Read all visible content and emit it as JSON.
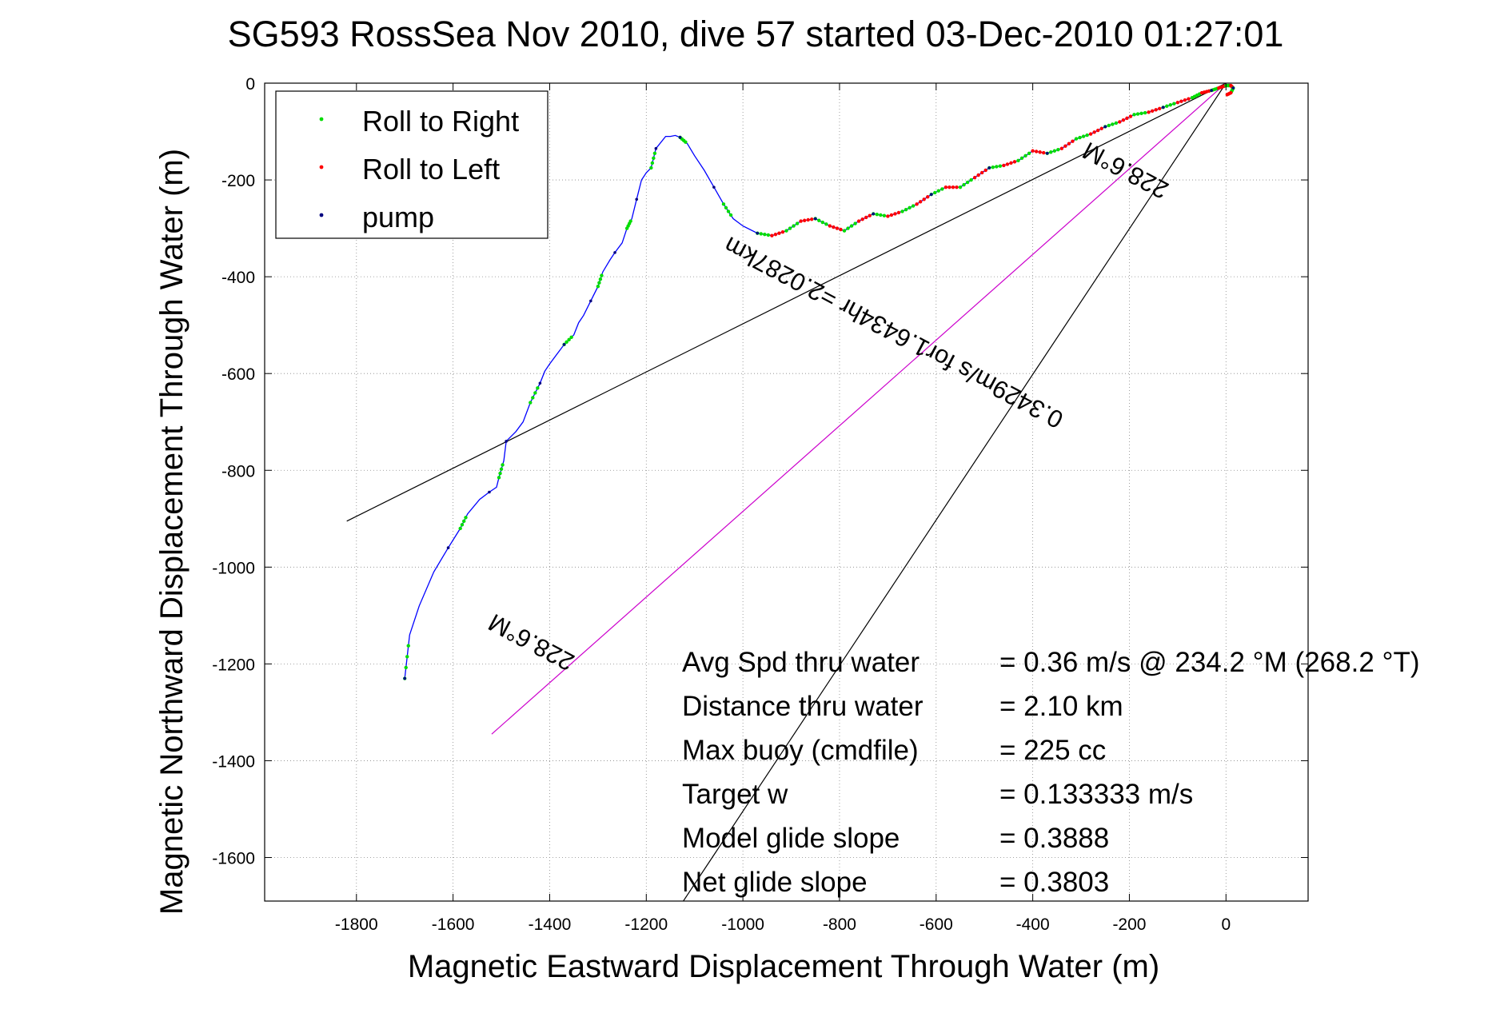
{
  "chart_data": {
    "type": "line",
    "title": "SG593 RossSea Nov 2010, dive 57 started 03-Dec-2010 01:27:01",
    "xlabel": "Magnetic Eastward Displacement Through Water (m)",
    "ylabel": "Magnetic Northward Displacement Through Water (m)",
    "xlim": [
      -1990,
      170
    ],
    "ylim": [
      -1690,
      0
    ],
    "grid": true,
    "x_ticks": [
      "-1800",
      "-1600",
      "-1400",
      "-1200",
      "-1000",
      "-800",
      "-600",
      "-400",
      "-200",
      "0"
    ],
    "y_ticks": [
      "0",
      "-200",
      "-400",
      "-600",
      "-800",
      "-1000",
      "-1200",
      "-1400",
      "-1600"
    ],
    "legend": {
      "placement": "top-left",
      "entries": [
        {
          "label": "Roll to Right",
          "color": "#00dd00"
        },
        {
          "label": "Roll to Left",
          "color": "#ff0000"
        },
        {
          "label": "pump",
          "color": "#000080"
        }
      ]
    },
    "track_color": "#0000ff",
    "series": [
      {
        "name": "track",
        "x": [
          -1700,
          -1690,
          -1670,
          -1640,
          -1610,
          -1585,
          -1570,
          -1545,
          -1525,
          -1510,
          -1505,
          -1495,
          -1490,
          -1470,
          -1455,
          -1440,
          -1420,
          -1410,
          -1400,
          -1385,
          -1370,
          -1350,
          -1340,
          -1330,
          -1315,
          -1300,
          -1290,
          -1275,
          -1265,
          -1250,
          -1240,
          -1230,
          -1220,
          -1210,
          -1200,
          -1190,
          -1180,
          -1160,
          -1150,
          -1140,
          -1130,
          -1115,
          -1100,
          -1080,
          -1060,
          -1040,
          -1020,
          -1000,
          -970,
          -940,
          -910,
          -880,
          -850,
          -820,
          -790,
          -760,
          -730,
          -700,
          -670,
          -640,
          -610,
          -580,
          -550,
          -520,
          -490,
          -460,
          -430,
          -400,
          -370,
          -340,
          -310,
          -280,
          -250,
          -220,
          -190,
          -160,
          -130,
          -100,
          -70,
          -50,
          -30,
          -15,
          0,
          10,
          15,
          10,
          0
        ],
        "y": [
          -1230,
          -1140,
          -1080,
          -1010,
          -960,
          -920,
          -890,
          -860,
          -845,
          -835,
          -815,
          -780,
          -740,
          -720,
          -700,
          -660,
          -620,
          -595,
          -580,
          -560,
          -540,
          -520,
          -495,
          -480,
          -450,
          -420,
          -390,
          -365,
          -350,
          -330,
          -300,
          -280,
          -240,
          -200,
          -185,
          -175,
          -135,
          -110,
          -110,
          -108,
          -112,
          -125,
          -150,
          -180,
          -215,
          -250,
          -280,
          -295,
          -310,
          -315,
          -305,
          -285,
          -280,
          -295,
          -305,
          -285,
          -270,
          -275,
          -265,
          -250,
          -230,
          -215,
          -215,
          -195,
          -175,
          -170,
          -160,
          -140,
          -145,
          -135,
          -115,
          -105,
          -90,
          -80,
          -65,
          -60,
          -50,
          -40,
          -30,
          -20,
          -15,
          -10,
          -5,
          -5,
          -10,
          -20,
          -25
        ]
      }
    ],
    "reference_lines": [
      {
        "x": [
          -1820,
          0
        ],
        "y": [
          -905,
          0
        ],
        "color": "#000000"
      },
      {
        "x": [
          -1520,
          0
        ],
        "y": [
          -1345,
          0
        ],
        "color": "#cc00cc"
      },
      {
        "x": [
          -1130,
          0
        ],
        "y": [
          -1700,
          0
        ],
        "color": "#000000"
      }
    ],
    "annotations": [
      {
        "text": "228.6°M",
        "x": -1430,
        "y": -1140,
        "rotation": 208
      },
      {
        "text": "0.3429m/s for1.6434hr =2.0287km",
        "x": -680,
        "y": -500,
        "rotation": 208
      },
      {
        "text": "228.6°M",
        "x": -200,
        "y": -165,
        "rotation": 208
      }
    ],
    "stats": [
      {
        "label": "Avg Spd thru water",
        "value": "=  0.36 m/s @ 234.2 °M (268.2 °T)"
      },
      {
        "label": "Distance thru water",
        "value": "=  2.10 km"
      },
      {
        "label": "Max buoy (cmdfile)",
        "value": "= 225 cc"
      },
      {
        "label": "Target w",
        "value": "= 0.133333 m/s"
      },
      {
        "label": "Model glide slope",
        "value": "= 0.3888"
      },
      {
        "label": "Net glide slope",
        "value": "= 0.3803"
      }
    ]
  }
}
